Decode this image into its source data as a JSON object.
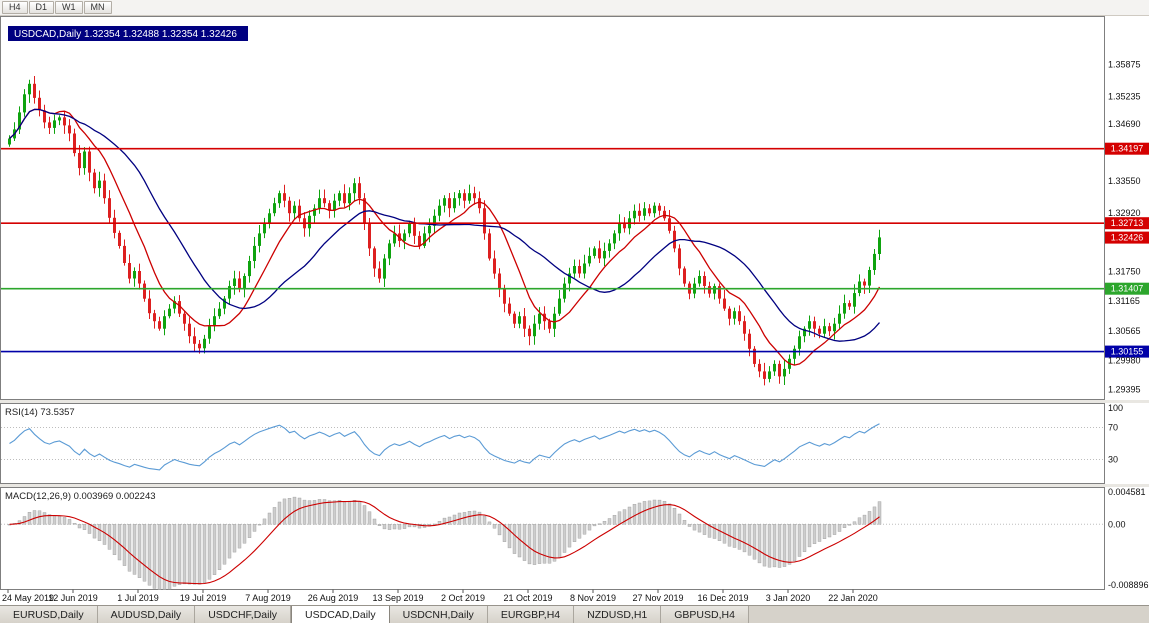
{
  "colors": {
    "candle_up": "#0fa30f",
    "candle_down": "#dd2020",
    "resistance": "#d40000",
    "support_green": "#2ca62c",
    "support_blue": "#0000a8",
    "rsi_line": "#5b9bd5",
    "macd_histogram": "#cdcdcd",
    "macd_signal": "#cc0000",
    "ma_fast": "#cc0000",
    "ma_slow": "#000080",
    "title_bar_bg": "#000080"
  },
  "toolbar": {
    "periods": [
      "H4",
      "D1",
      "W1",
      "MN"
    ]
  },
  "tabs": [
    {
      "label": "EURUSD,Daily",
      "active": false
    },
    {
      "label": "AUDUSD,Daily",
      "active": false
    },
    {
      "label": "USDCHF,Daily",
      "active": false
    },
    {
      "label": "USDCAD,Daily",
      "active": true
    },
    {
      "label": "USDCNH,Daily",
      "active": false
    },
    {
      "label": "EURGBP,H4",
      "active": false
    },
    {
      "label": "NZDUSD,H1",
      "active": false
    },
    {
      "label": "GBPUSD,H4",
      "active": false
    }
  ],
  "chart_data": {
    "type": "candlestick",
    "symbol": "USDCAD",
    "timeframe": "Daily",
    "title": "USDCAD,Daily 1.32354 1.32488 1.32354 1.32426",
    "ohlc_display": {
      "open": "1.32354",
      "high": "1.32488",
      "low": "1.32354",
      "close": "1.32426"
    },
    "price_range": [
      1.2925,
      1.368
    ],
    "price_axis_ticks": [
      "1.35875",
      "1.35235",
      "1.34690",
      "1.33550",
      "1.32920",
      "1.31750",
      "1.31165",
      "1.30565",
      "1.29980",
      "1.29395"
    ],
    "x_labels": [
      "24 May 2019",
      "12 Jun 2019",
      "1 Jul 2019",
      "19 Jul 2019",
      "7 Aug 2019",
      "26 Aug 2019",
      "13 Sep 2019",
      "2 Oct 2019",
      "21 Oct 2019",
      "8 Nov 2019",
      "27 Nov 2019",
      "16 Dec 2019",
      "3 Jan 2020",
      "22 Jan 2020"
    ],
    "x_label_step": 13,
    "levels": [
      {
        "price": 1.34197,
        "label": "1.34197",
        "color": "#d40000",
        "kind": "resistance"
      },
      {
        "price": 1.32713,
        "label": "1.32713",
        "color": "#d40000",
        "kind": "resistance"
      },
      {
        "price": 1.31407,
        "label": "1.31407",
        "color": "#2ca62c",
        "kind": "support"
      },
      {
        "price": 1.30155,
        "label": "1.30155",
        "color": "#0000a8",
        "kind": "support"
      }
    ],
    "current_price": {
      "value": 1.32426,
      "label": "1.32426",
      "color": "#d40000"
    },
    "moving_averages": [
      {
        "period": 10,
        "color": "#cc0000"
      },
      {
        "period": 24,
        "color": "#000080"
      }
    ],
    "closes": [
      1.344,
      1.3458,
      1.3492,
      1.3528,
      1.3549,
      1.3521,
      1.3496,
      1.3472,
      1.3461,
      1.3476,
      1.3482,
      1.3466,
      1.345,
      1.3411,
      1.3381,
      1.3414,
      1.3372,
      1.3341,
      1.3356,
      1.3321,
      1.3282,
      1.3252,
      1.3226,
      1.3192,
      1.3161,
      1.3176,
      1.3151,
      1.3121,
      1.3092,
      1.3076,
      1.3061,
      1.3086,
      1.3101,
      1.3116,
      1.3091,
      1.3071,
      1.3046,
      1.3031,
      1.3022,
      1.3041,
      1.3066,
      1.3086,
      1.3101,
      1.3121,
      1.3146,
      1.3161,
      1.3141,
      1.3166,
      1.3196,
      1.3226,
      1.3251,
      1.3271,
      1.3291,
      1.3311,
      1.3331,
      1.3316,
      1.3291,
      1.3306,
      1.3281,
      1.3261,
      1.3286,
      1.3301,
      1.3321,
      1.3311,
      1.3296,
      1.3316,
      1.3331,
      1.3311,
      1.3331,
      1.3351,
      1.3321,
      1.3271,
      1.3221,
      1.3181,
      1.3161,
      1.3201,
      1.3231,
      1.3251,
      1.3236,
      1.3251,
      1.3271,
      1.3246,
      1.3226,
      1.3251,
      1.3266,
      1.3286,
      1.3306,
      1.3321,
      1.3301,
      1.3321,
      1.3331,
      1.3316,
      1.3331,
      1.3321,
      1.3301,
      1.3251,
      1.3201,
      1.3171,
      1.3141,
      1.3111,
      1.3091,
      1.3071,
      1.3086,
      1.3061,
      1.3046,
      1.3071,
      1.3091,
      1.3076,
      1.3061,
      1.3091,
      1.3121,
      1.3151,
      1.3171,
      1.3186,
      1.3171,
      1.3191,
      1.3206,
      1.3221,
      1.3201,
      1.3216,
      1.3231,
      1.3251,
      1.3271,
      1.3261,
      1.3281,
      1.3296,
      1.3286,
      1.3301,
      1.3291,
      1.3306,
      1.3296,
      1.3281,
      1.3256,
      1.3221,
      1.3181,
      1.3151,
      1.3131,
      1.3151,
      1.3166,
      1.3146,
      1.3131,
      1.3146,
      1.3121,
      1.3101,
      1.3081,
      1.3096,
      1.3076,
      1.3051,
      1.3021,
      1.2991,
      1.2976,
      1.2961,
      1.2976,
      1.2991,
      1.2966,
      1.2981,
      1.3001,
      1.3021,
      1.3046,
      1.3061,
      1.3076,
      1.3061,
      1.3051,
      1.3066,
      1.3056,
      1.3071,
      1.3091,
      1.3112,
      1.3105,
      1.3132,
      1.3155,
      1.3147,
      1.3178,
      1.321,
      1.3243
    ],
    "rsi": {
      "period": 14,
      "label": "RSI(14) 73.5357",
      "last_value": 73.5357,
      "range": [
        0,
        100
      ],
      "levels": [
        70,
        30
      ],
      "axis_ticks": [
        "100",
        "70",
        "30"
      ],
      "color": "#5b9bd5"
    },
    "macd": {
      "params": [
        12,
        26,
        9
      ],
      "label": "MACD(12,26,9) 0.003969 0.002243",
      "last_value": 0.003969,
      "last_signal": 0.002243,
      "range": [
        -0.0092,
        0.0052
      ],
      "axis_ticks": [
        "0.004581",
        "0.00",
        "-0.008896"
      ]
    }
  }
}
